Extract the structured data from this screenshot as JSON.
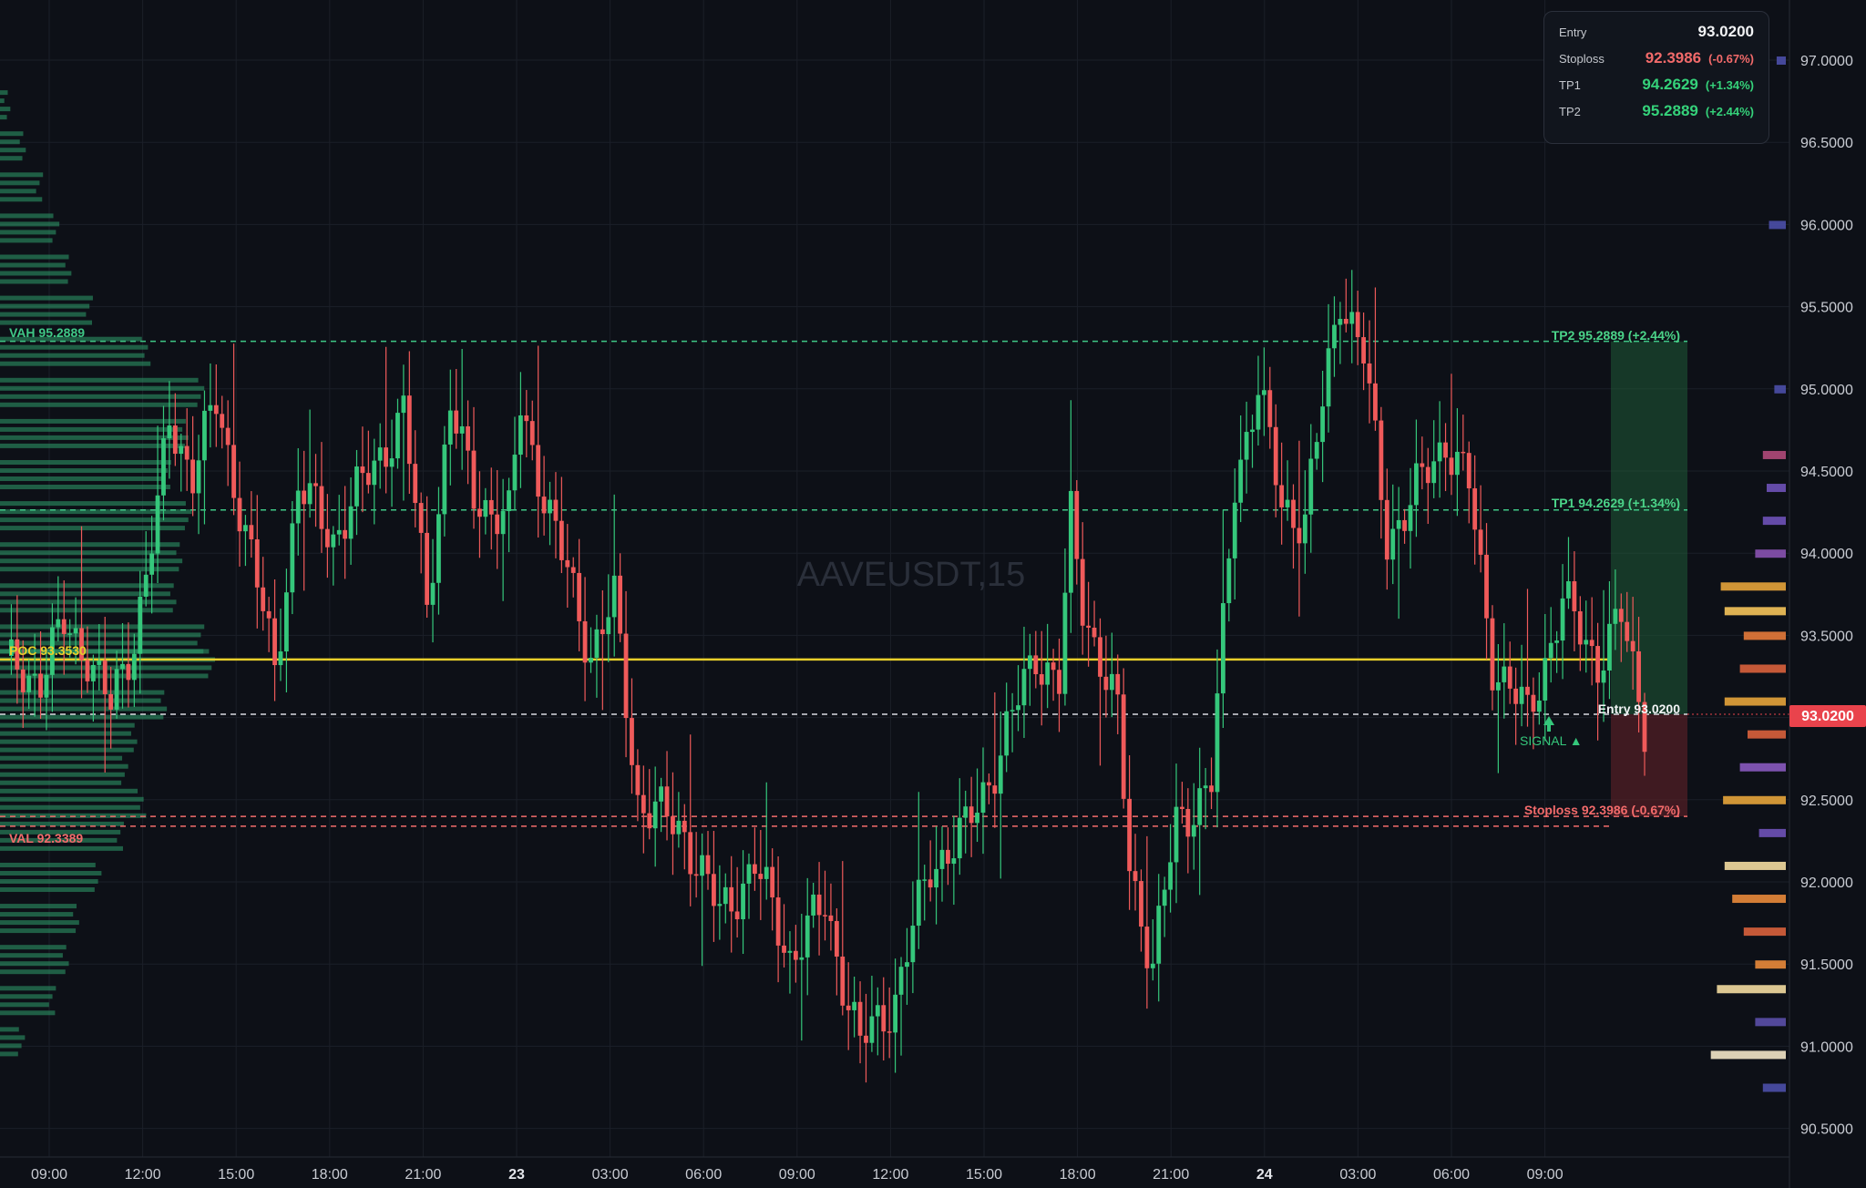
{
  "symbol": "AAVEUSDT,15",
  "info_panel": {
    "entry_label": "Entry",
    "entry_value": "93.0200",
    "stoploss_label": "Stoploss",
    "stoploss_value": "92.3986",
    "stoploss_pct": "(-0.67%)",
    "tp1_label": "TP1",
    "tp1_value": "94.2629",
    "tp1_pct": "(+1.34%)",
    "tp2_label": "TP2",
    "tp2_value": "95.2889",
    "tp2_pct": "(+2.44%)"
  },
  "chart_labels": {
    "vah": "VAH  95.2889",
    "poc": "POC  93.3530",
    "val": "VAL  92.3389",
    "tp2": "TP2 95.2889 (+2.44%)",
    "tp1": "TP1 94.2629 (+1.34%)",
    "entry": "Entry 93.0200",
    "stoploss": "Stoploss 92.3986 (-0.67%)",
    "signal": "SIGNAL ▲",
    "price_badge": "93.0200"
  },
  "colors": {
    "background": "#0d1017",
    "bull": "#35c77b",
    "bear": "#ef5a5a",
    "poc": "#e8cf2b",
    "tp_zone": "#1f5a37",
    "sl_zone": "#5a2127",
    "price_badge": "#e9434c"
  },
  "chart_data": {
    "type": "candlestick",
    "title": "AAVEUSDT,15",
    "ylim": [
      90.36,
      97.3
    ],
    "yticks": [
      90.5,
      91.0,
      91.5,
      92.0,
      92.5,
      93.0,
      93.5,
      94.0,
      94.5,
      95.0,
      95.5,
      96.0,
      96.5,
      97.0
    ],
    "ytick_labels": [
      "90.5000",
      "91.0000",
      "91.5000",
      "92.0000",
      "92.5000",
      "93.0000",
      "93.5000",
      "94.0000",
      "94.5000",
      "95.0000",
      "95.5000",
      "96.0000",
      "96.5000",
      "97.0000"
    ],
    "xticks": [
      "09:00",
      "12:00",
      "15:00",
      "18:00",
      "21:00",
      "23",
      "03:00",
      "06:00",
      "09:00",
      "12:00",
      "15:00",
      "18:00",
      "21:00",
      "24",
      "03:00",
      "06:00",
      "09:00"
    ],
    "levels": {
      "entry": 93.02,
      "stoploss": 92.3986,
      "tp1": 94.2629,
      "tp2": 95.2889,
      "vah": 95.2889,
      "poc": 93.353,
      "val": 92.3389
    },
    "candle_interval": "15",
    "path_points": [
      [
        0,
        93.3
      ],
      [
        6,
        93.25
      ],
      [
        10,
        93.55
      ],
      [
        14,
        93.4
      ],
      [
        18,
        93.05
      ],
      [
        22,
        93.5
      ],
      [
        26,
        94.25
      ],
      [
        28,
        94.8
      ],
      [
        32,
        94.5
      ],
      [
        36,
        94.9
      ],
      [
        40,
        94.3
      ],
      [
        46,
        93.3
      ],
      [
        50,
        94.4
      ],
      [
        56,
        94.1
      ],
      [
        64,
        94.6
      ],
      [
        68,
        94.85
      ],
      [
        72,
        93.7
      ],
      [
        76,
        94.9
      ],
      [
        80,
        94.35
      ],
      [
        86,
        94.2
      ],
      [
        88,
        94.9
      ],
      [
        94,
        94.1
      ],
      [
        100,
        93.4
      ],
      [
        104,
        93.7
      ],
      [
        108,
        92.5
      ],
      [
        116,
        92.3
      ],
      [
        122,
        91.8
      ],
      [
        128,
        92.1
      ],
      [
        134,
        91.55
      ],
      [
        140,
        91.85
      ],
      [
        146,
        91.0
      ],
      [
        152,
        91.3
      ],
      [
        158,
        92.1
      ],
      [
        164,
        92.3
      ],
      [
        170,
        92.8
      ],
      [
        176,
        93.4
      ],
      [
        180,
        93.2
      ],
      [
        182,
        94.2
      ],
      [
        184,
        93.7
      ],
      [
        190,
        93.0
      ],
      [
        192,
        92.1
      ],
      [
        196,
        91.5
      ],
      [
        200,
        92.35
      ],
      [
        206,
        92.6
      ],
      [
        210,
        94.45
      ],
      [
        214,
        95.0
      ],
      [
        218,
        94.3
      ],
      [
        222,
        94.2
      ],
      [
        228,
        95.6
      ],
      [
        232,
        95.2
      ],
      [
        236,
        94.1
      ],
      [
        240,
        94.3
      ],
      [
        246,
        94.7
      ],
      [
        250,
        94.4
      ],
      [
        254,
        93.35
      ],
      [
        260,
        93.0
      ],
      [
        266,
        93.7
      ],
      [
        272,
        93.35
      ],
      [
        276,
        93.6
      ],
      [
        280,
        92.98
      ]
    ],
    "volume_profile_left": [
      [
        97.0,
        0.0
      ],
      [
        96.75,
        0.06
      ],
      [
        96.5,
        0.12
      ],
      [
        96.25,
        0.2
      ],
      [
        96.0,
        0.28
      ],
      [
        95.75,
        0.34
      ],
      [
        95.5,
        0.44
      ],
      [
        95.25,
        0.7
      ],
      [
        95.0,
        0.95
      ],
      [
        94.75,
        0.88
      ],
      [
        94.5,
        0.8
      ],
      [
        94.25,
        0.9
      ],
      [
        94.0,
        0.86
      ],
      [
        93.75,
        0.82
      ],
      [
        93.5,
        0.95
      ],
      [
        93.35,
        1.0
      ],
      [
        93.1,
        0.78
      ],
      [
        92.9,
        0.65
      ],
      [
        92.7,
        0.6
      ],
      [
        92.5,
        0.68
      ],
      [
        92.3,
        0.58
      ],
      [
        92.05,
        0.48
      ],
      [
        91.8,
        0.38
      ],
      [
        91.55,
        0.32
      ],
      [
        91.3,
        0.26
      ],
      [
        91.05,
        0.12
      ]
    ],
    "volume_profile_right": [
      [
        94.6,
        0.3,
        "#b04a7a"
      ],
      [
        94.4,
        0.25,
        "#6e52b8"
      ],
      [
        94.2,
        0.3,
        "#6e52b8"
      ],
      [
        94.0,
        0.4,
        "#8852b0"
      ],
      [
        93.8,
        0.85,
        "#e5a43a"
      ],
      [
        93.65,
        0.8,
        "#f5c45a"
      ],
      [
        93.5,
        0.55,
        "#e47a3a"
      ],
      [
        93.3,
        0.6,
        "#d9623c"
      ],
      [
        93.1,
        0.8,
        "#e5a43a"
      ],
      [
        92.9,
        0.5,
        "#d9623c"
      ],
      [
        92.7,
        0.6,
        "#8a5ac0"
      ],
      [
        92.5,
        0.82,
        "#e5a43a"
      ],
      [
        92.3,
        0.35,
        "#6e52b8"
      ],
      [
        92.1,
        0.8,
        "#f3dba0"
      ],
      [
        91.9,
        0.7,
        "#e98a3a"
      ],
      [
        91.7,
        0.55,
        "#d9623c"
      ],
      [
        91.5,
        0.4,
        "#e98a3a"
      ],
      [
        91.35,
        0.9,
        "#f3dba0"
      ],
      [
        91.15,
        0.4,
        "#5a4fa8"
      ],
      [
        90.95,
        0.98,
        "#f3e7c8"
      ],
      [
        90.75,
        0.3,
        "#4b4fa8"
      ],
      [
        96.0,
        0.22,
        "#4b4fa8"
      ],
      [
        95.0,
        0.15,
        "#4b4fa8"
      ],
      [
        97.0,
        0.12,
        "#4b4fa8"
      ]
    ]
  }
}
